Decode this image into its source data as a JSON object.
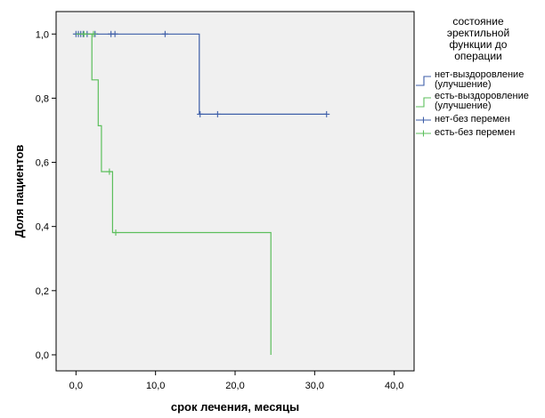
{
  "chart_data": {
    "type": "line",
    "subtype": "kaplan-meier",
    "xlabel": "срок лечения, месяцы",
    "ylabel": "Доля пациентов",
    "xlim": [
      -2.5,
      42.5
    ],
    "ylim": [
      -0.05,
      1.07
    ],
    "xticks": [
      0,
      10,
      20,
      30,
      40
    ],
    "yticks": [
      0,
      0.2,
      0.4,
      0.6,
      0.8,
      1.0
    ],
    "xtick_labels": [
      "0,0",
      "10,0",
      "20,0",
      "30,0",
      "40,0"
    ],
    "ytick_labels": [
      "0,0",
      "0,2",
      "0,4",
      "0,6",
      "0,8",
      "1,0"
    ],
    "grid": false,
    "background": "#f0f0f0",
    "legend": {
      "position": "right",
      "title": [
        "состояние",
        "эректильной",
        "функции до",
        "операции"
      ],
      "entries": [
        {
          "label": [
            "нет-выздоровление",
            "(улучшение)"
          ],
          "marker": "step",
          "color": "#3d5ea8"
        },
        {
          "label": [
            "есть-выздоровление",
            "(улучшение)"
          ],
          "marker": "step",
          "color": "#5cbf5c"
        },
        {
          "label": [
            "нет-без перемен"
          ],
          "marker": "plus",
          "color": "#3d5ea8"
        },
        {
          "label": [
            "есть-без перемен"
          ],
          "marker": "plus",
          "color": "#5cbf5c"
        }
      ]
    },
    "series": [
      {
        "color": "#3d5ea8",
        "steps": [
          [
            0,
            1.0
          ],
          [
            15.5,
            1.0
          ],
          [
            15.5,
            0.75
          ],
          [
            31.5,
            0.75
          ]
        ],
        "censored": [
          [
            0,
            1.0
          ],
          [
            0.3,
            1.0
          ],
          [
            0.6,
            1.0
          ],
          [
            0.9,
            1.0
          ],
          [
            1.4,
            1.0
          ],
          [
            2.4,
            1.0
          ],
          [
            4.4,
            1.0
          ],
          [
            4.9,
            1.0
          ],
          [
            11.2,
            1.0
          ],
          [
            15.6,
            0.75
          ],
          [
            17.8,
            0.75
          ],
          [
            31.5,
            0.75
          ]
        ]
      },
      {
        "color": "#5cbf5c",
        "steps": [
          [
            0,
            1.0
          ],
          [
            2.0,
            1.0
          ],
          [
            2.0,
            0.857
          ],
          [
            2.8,
            0.857
          ],
          [
            2.8,
            0.714
          ],
          [
            3.2,
            0.714
          ],
          [
            3.2,
            0.571
          ],
          [
            4.6,
            0.571
          ],
          [
            4.6,
            0.381
          ],
          [
            24.5,
            0.381
          ],
          [
            24.5,
            0.0
          ]
        ],
        "censored": [
          [
            1.0,
            1.0
          ],
          [
            2.2,
            1.0
          ],
          [
            4.2,
            0.571
          ],
          [
            5.0,
            0.381
          ]
        ]
      }
    ]
  }
}
